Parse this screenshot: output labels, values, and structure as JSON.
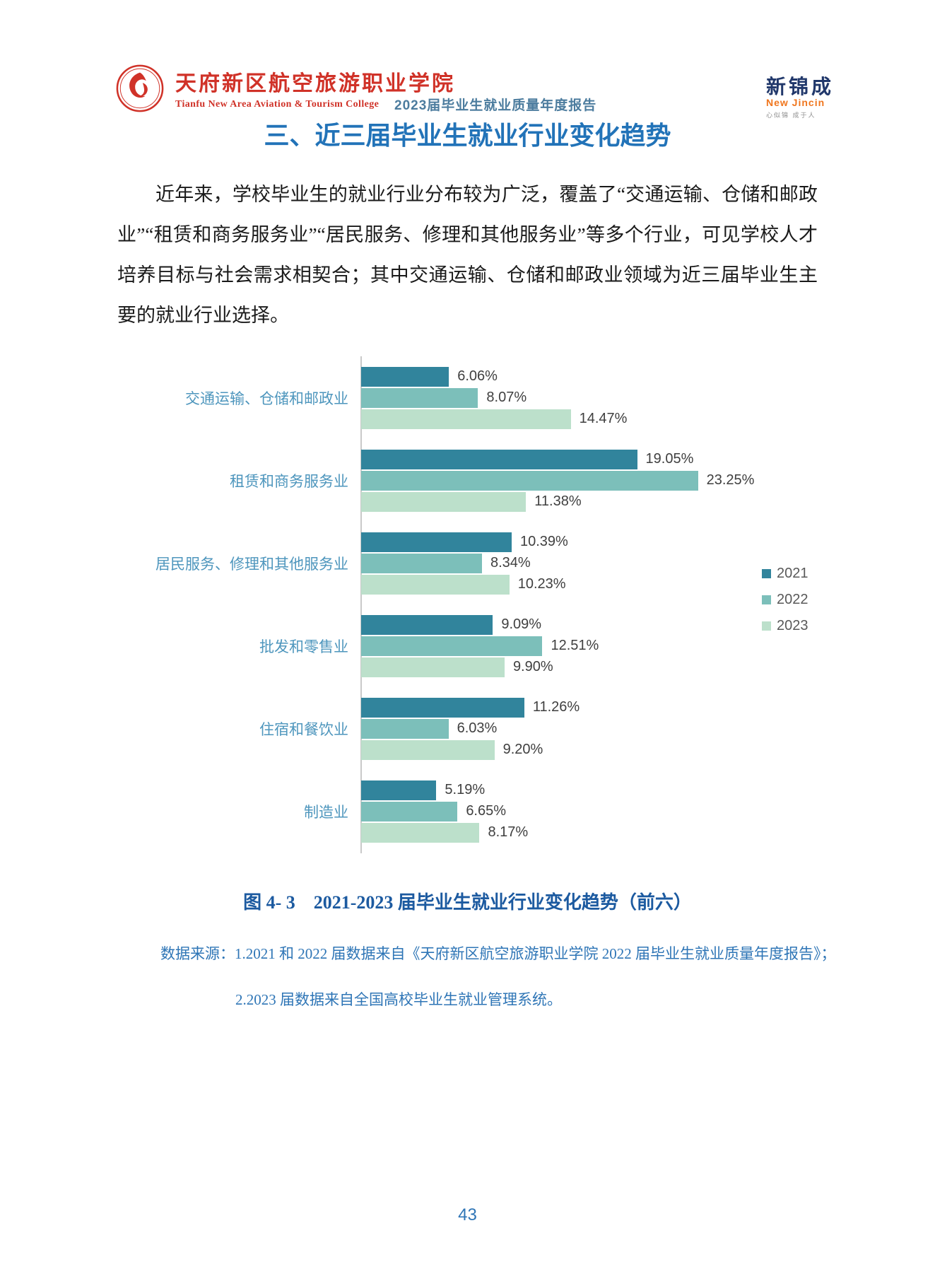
{
  "header": {
    "school_name_zh": "天府新区航空旅游职业学院",
    "school_name_en": "Tianfu New Area Aviation & Tourism College",
    "report_title": "2023届毕业生就业质量年度报告",
    "brand_name_zh": "新锦成",
    "brand_name_en": "New Jincin",
    "brand_slogan": "心似锦 成于人"
  },
  "section": {
    "heading": "三、近三届毕业生就业行业变化趋势",
    "paragraph": "近年来，学校毕业生的就业行业分布较为广泛，覆盖了“交通运输、仓储和邮政业”“租赁和商务服务业”“居民服务、修理和其他服务业”等多个行业，可见学校人才培养目标与社会需求相契合；其中交通运输、仓储和邮政业领域为近三届毕业生主要的就业行业选择。"
  },
  "chart_data": {
    "type": "bar",
    "orientation": "horizontal",
    "title": "",
    "categories": [
      "交通运输、仓储和邮政业",
      "租赁和商务服务业",
      "居民服务、修理和其他服务业",
      "批发和零售业",
      "住宿和餐饮业",
      "制造业"
    ],
    "series": [
      {
        "name": "2021",
        "color": "#31849C",
        "values": [
          6.06,
          19.05,
          10.39,
          9.09,
          11.26,
          5.19
        ]
      },
      {
        "name": "2022",
        "color": "#7CBFBA",
        "values": [
          8.07,
          23.25,
          8.34,
          12.51,
          6.03,
          6.65
        ]
      },
      {
        "name": "2023",
        "color": "#BCE0CB",
        "values": [
          14.47,
          11.38,
          10.23,
          9.9,
          9.2,
          8.17
        ]
      }
    ],
    "value_suffix": "%",
    "xlim": [
      0,
      25
    ],
    "grid": false,
    "legend_position": "right",
    "axis_color": "#C9C9C9",
    "category_label_color": "#4E96BD",
    "value_label_color": "#3F3F3F"
  },
  "figure": {
    "caption": "图 4- 3　2021-2023 届毕业生就业行业变化趋势（前六）",
    "source_line1": "数据来源：1.2021 和 2022 届数据来自《天府新区航空旅游职业学院 2022 届毕业生就业质量年度报告》；",
    "source_line2": "2.2023 届数据来自全国高校毕业生就业管理系统。"
  },
  "footer": {
    "page_number": "43"
  }
}
